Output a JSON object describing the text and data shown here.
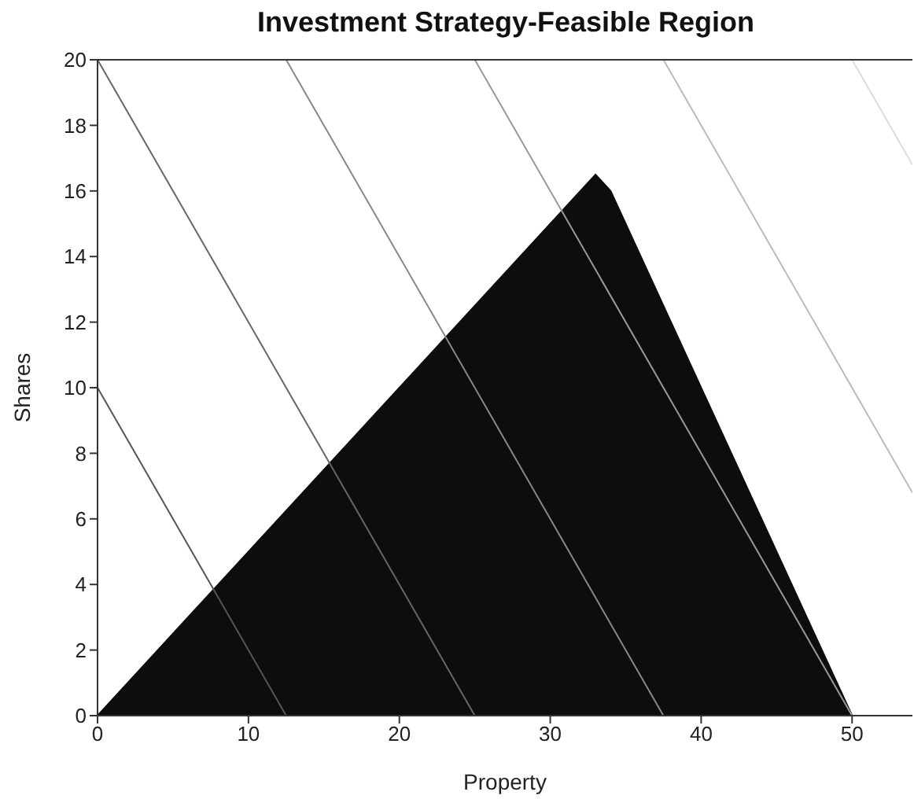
{
  "chart_data": {
    "type": "line",
    "title": "Investment Strategy-Feasible Region",
    "xlabel": "Property",
    "ylabel": "Shares",
    "xlim": [
      0,
      54
    ],
    "ylim": [
      0,
      20
    ],
    "xticks": [
      0,
      10,
      20,
      30,
      40,
      50
    ],
    "yticks": [
      0,
      2,
      4,
      6,
      8,
      10,
      12,
      14,
      16,
      18,
      20
    ],
    "grid": false,
    "marker": "none",
    "line_style": "solid",
    "series": [
      {
        "type": "area",
        "color": "#0d0d0d",
        "x": [
          0,
          33,
          34,
          50
        ],
        "values": [
          0,
          16.5,
          16,
          0
        ]
      },
      {
        "color": "#555555",
        "x": [
          0,
          12.5
        ],
        "values": [
          10,
          0
        ]
      },
      {
        "color": "#666666",
        "x": [
          0,
          25
        ],
        "values": [
          20,
          0
        ]
      },
      {
        "color": "#888888",
        "x": [
          12.5,
          37.5
        ],
        "values": [
          20,
          0
        ]
      },
      {
        "color": "#999999",
        "x": [
          25,
          50
        ],
        "values": [
          20,
          0
        ]
      },
      {
        "color": "#bbbbbb",
        "x": [
          37.5,
          54
        ],
        "values": [
          20,
          6.8
        ]
      },
      {
        "color": "#dddddd",
        "x": [
          50,
          54
        ],
        "values": [
          20,
          16.8
        ]
      }
    ]
  }
}
